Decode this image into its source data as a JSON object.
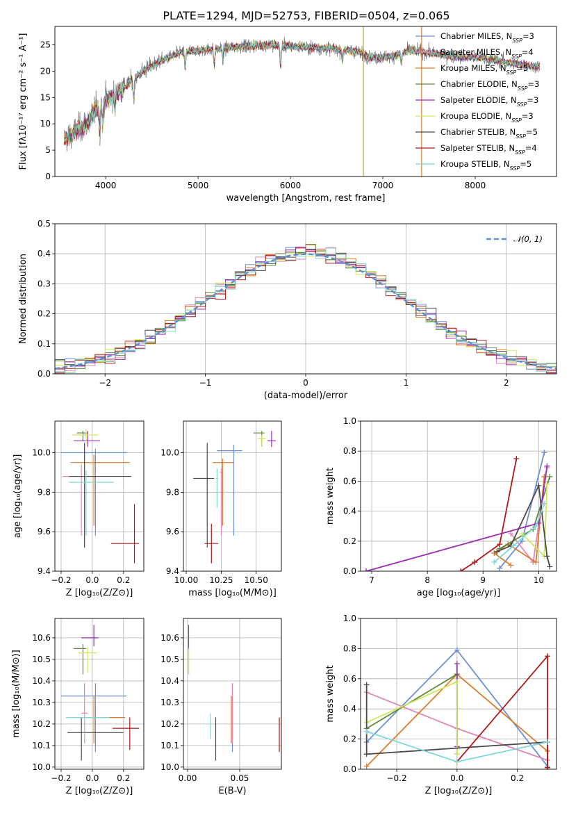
{
  "figure_title": "PLATE=1294, MJD=52753, FIBERID=0504, z=0.065",
  "colors": {
    "grid": "#b0b0b0",
    "normal_curve": "#5f8fd0"
  },
  "models": [
    {
      "label": "Chabrier MILES, N",
      "sub": "SSP",
      "suffix": "=3",
      "color": "#6a8fd8"
    },
    {
      "label": "Salpeter MILES, N",
      "sub": "SSP",
      "suffix": "=4",
      "color": "#e485b7"
    },
    {
      "label": "Kroupa MILES, N",
      "sub": "SSP",
      "suffix": "=5",
      "color": "#e07a2a"
    },
    {
      "label": "Chabrier ELODIE, N",
      "sub": "SSP",
      "suffix": "=3",
      "color": "#5a8a3a"
    },
    {
      "label": "Salpeter ELODIE, N",
      "sub": "SSP",
      "suffix": "=3",
      "color": "#9a2bb8"
    },
    {
      "label": "Kroupa ELODIE, N",
      "sub": "SSP",
      "suffix": "=3",
      "color": "#cde85a"
    },
    {
      "label": "Chabrier STELIB, N",
      "sub": "SSP",
      "suffix": "=5",
      "color": "#4a4a4a"
    },
    {
      "label": "Salpeter STELIB, N",
      "sub": "SSP",
      "suffix": "=4",
      "color": "#b01818"
    },
    {
      "label": "Kroupa STELIB, N",
      "sub": "SSP",
      "suffix": "=5",
      "color": "#7ed8d8"
    }
  ],
  "chart_data": [
    {
      "id": "spectrum",
      "type": "line",
      "title": "PLATE=1294, MJD=52753, FIBERID=0504, z=0.065",
      "xlabel": "wavelength [Angstrom, rest frame]",
      "ylabel": "Flux [fλ10⁻¹⁷ erg cm⁻² s⁻¹ A⁻¹]",
      "xlim": [
        3450,
        8880
      ],
      "ylim": [
        0,
        28.5
      ],
      "xticks": [
        4000,
        5000,
        6000,
        7000,
        8000
      ],
      "yticks": [
        0,
        5,
        10,
        15,
        20,
        25
      ],
      "data_range": [
        3550,
        8700
      ],
      "continuum_knots": [
        [
          3550,
          7
        ],
        [
          3700,
          9
        ],
        [
          3800,
          10
        ],
        [
          3900,
          13
        ],
        [
          4000,
          14.5
        ],
        [
          4200,
          17
        ],
        [
          4400,
          20
        ],
        [
          4600,
          22
        ],
        [
          4800,
          23.5
        ],
        [
          5000,
          24
        ],
        [
          5200,
          24.2
        ],
        [
          5500,
          24.8
        ],
        [
          5800,
          25
        ],
        [
          6100,
          24.6
        ],
        [
          6400,
          24.3
        ],
        [
          6700,
          23.8
        ],
        [
          6900,
          22.5
        ],
        [
          7100,
          22.8
        ],
        [
          7300,
          24
        ],
        [
          7500,
          23.5
        ],
        [
          7800,
          22.8
        ],
        [
          8100,
          22.5
        ],
        [
          8400,
          21.5
        ],
        [
          8700,
          20.8
        ]
      ],
      "vertical_spikes": [
        6790,
        7420
      ],
      "legend": "top-right"
    },
    {
      "id": "residuals",
      "type": "histogram",
      "xlabel": "(data-model)/error",
      "ylabel": "Normed distribution",
      "xlim": [
        -2.5,
        2.5
      ],
      "ylim": [
        0,
        0.5
      ],
      "xticks": [
        -2,
        -1,
        0,
        1,
        2
      ],
      "yticks": [
        0.0,
        0.1,
        0.2,
        0.3,
        0.4,
        0.5
      ],
      "bin_width": 0.1,
      "normal_label": "𝒩(0, 1)",
      "legend": "top-right"
    },
    {
      "id": "age_vs_Z",
      "type": "errorbar",
      "xlabel": "Z [log₁₀(Z/Z⊙)]",
      "ylabel": "age  [log₁₀(age/yr)]",
      "xlim": [
        -0.24,
        0.33
      ],
      "ylim": [
        9.4,
        10.16
      ],
      "xticks": [
        -0.2,
        0.0,
        0.2
      ],
      "yticks": [
        9.4,
        9.6,
        9.8,
        10.0
      ],
      "points": [
        {
          "m": 0,
          "x": 0.02,
          "y": 10.0,
          "xerr": [
            0.22,
            0.2
          ],
          "yerr": [
            0.42,
            0.02
          ]
        },
        {
          "m": 1,
          "x": -0.07,
          "y": 9.88,
          "xerr": [
            0.12,
            0.1
          ],
          "yerr": [
            0.3,
            0.06
          ]
        },
        {
          "m": 2,
          "x": 0.01,
          "y": 9.95,
          "xerr": [
            0.15,
            0.23
          ],
          "yerr": [
            0.32,
            0.04
          ]
        },
        {
          "m": 3,
          "x": -0.06,
          "y": 10.1,
          "xerr": [
            0.04,
            0.03
          ],
          "yerr": [
            0.04,
            0.01
          ]
        },
        {
          "m": 4,
          "x": -0.03,
          "y": 10.06,
          "xerr": [
            0.09,
            0.08
          ],
          "yerr": [
            0.03,
            0.05
          ]
        },
        {
          "m": 5,
          "x": -0.04,
          "y": 10.09,
          "xerr": [
            0.09,
            0.08
          ],
          "yerr": [
            0.04,
            0.03
          ]
        },
        {
          "m": 6,
          "x": -0.05,
          "y": 9.88,
          "xerr": [
            0.1,
            0.3
          ],
          "yerr": [
            0.36,
            0.17
          ]
        },
        {
          "m": 7,
          "x": 0.27,
          "y": 9.54,
          "xerr": [
            0.15,
            0.03
          ],
          "yerr": [
            0.1,
            0.2
          ]
        },
        {
          "m": 8,
          "x": -0.04,
          "y": 9.85,
          "xerr": [
            0.11,
            0.18
          ],
          "yerr": [
            0.27,
            0.06
          ]
        }
      ]
    },
    {
      "id": "age_vs_mass",
      "type": "errorbar",
      "xlabel": "mass [log₁₀(M/M⊙)]",
      "ylabel": "",
      "xlim": [
        9.98,
        10.68
      ],
      "ylim": [
        9.4,
        10.16
      ],
      "xticks": [
        10.0,
        10.25,
        10.5
      ],
      "yticks": [
        9.4,
        9.6,
        9.8,
        10.0
      ],
      "points": [
        {
          "m": 0,
          "x": 10.34,
          "y": 10.01,
          "xerr": [
            0.12,
            0.06
          ],
          "yerr": [
            0.43,
            0.03
          ]
        },
        {
          "m": 1,
          "x": 10.25,
          "y": 9.9,
          "xerr": [
            0.01,
            0.01
          ],
          "yerr": [
            0.32,
            0.02
          ]
        },
        {
          "m": 2,
          "x": 10.26,
          "y": 9.95,
          "xerr": [
            0.07,
            0.08
          ],
          "yerr": [
            0.32,
            0.02
          ]
        },
        {
          "m": 3,
          "x": 10.54,
          "y": 10.1,
          "xerr": [
            0.06,
            0.02
          ],
          "yerr": [
            0.07,
            0.01
          ]
        },
        {
          "m": 4,
          "x": 10.61,
          "y": 10.06,
          "xerr": [
            0.03,
            0.03
          ],
          "yerr": [
            0.03,
            0.05
          ]
        },
        {
          "m": 5,
          "x": 10.54,
          "y": 10.07,
          "xerr": [
            0.03,
            0.03
          ],
          "yerr": [
            0.04,
            0.02
          ]
        },
        {
          "m": 6,
          "x": 10.15,
          "y": 9.87,
          "xerr": [
            0.1,
            0.05
          ],
          "yerr": [
            0.35,
            0.18
          ]
        },
        {
          "m": 7,
          "x": 10.18,
          "y": 9.54,
          "xerr": [
            0.05,
            0.05
          ],
          "yerr": [
            0.1,
            0.1
          ]
        },
        {
          "m": 8,
          "x": 10.22,
          "y": 9.87,
          "xerr": [
            0.01,
            0.01
          ],
          "yerr": [
            0.15,
            0.05
          ]
        }
      ]
    },
    {
      "id": "weight_vs_age",
      "type": "line",
      "xlabel": "age  [log₁₀(age/yr)]",
      "ylabel": "mass weight",
      "xlim": [
        6.8,
        10.32
      ],
      "ylim": [
        0,
        1.0
      ],
      "xticks": [
        7,
        8,
        9,
        10
      ],
      "yticks": [
        0.0,
        0.2,
        0.4,
        0.6,
        0.8,
        1.0
      ],
      "series": [
        {
          "m": 0,
          "x": [
            9.3,
            9.7,
            10.1
          ],
          "y": [
            0.02,
            0.2,
            0.79
          ]
        },
        {
          "m": 1,
          "x": [
            9.5,
            9.9,
            10.15
          ],
          "y": [
            0.25,
            0.06,
            0.69
          ]
        },
        {
          "m": 2,
          "x": [
            9.5,
            9.2,
            9.45,
            9.95,
            10.1
          ],
          "y": [
            0.04,
            0.12,
            0.18,
            0.06,
            0.63
          ]
        },
        {
          "m": 3,
          "x": [
            9.3,
            9.9,
            10.2
          ],
          "y": [
            0.15,
            0.28,
            0.63
          ]
        },
        {
          "m": 4,
          "x": [
            6.9,
            10.0,
            10.15
          ],
          "y": [
            0.0,
            0.32,
            0.7
          ]
        },
        {
          "m": 5,
          "x": [
            9.7,
            10.1,
            10.15
          ],
          "y": [
            0.25,
            0.1,
            0.58
          ]
        },
        {
          "m": 6,
          "x": [
            9.25,
            9.5,
            10.0,
            10.15,
            10.2
          ],
          "y": [
            0.13,
            0.17,
            0.57,
            0.1,
            0.03
          ]
        },
        {
          "m": 7,
          "x": [
            8.6,
            8.85,
            9.3,
            9.6
          ],
          "y": [
            0.0,
            0.06,
            0.18,
            0.75
          ]
        },
        {
          "m": 8,
          "x": [
            9.2,
            9.55,
            9.95,
            10.1
          ],
          "y": [
            0.06,
            0.17,
            0.3,
            0.45
          ]
        }
      ]
    },
    {
      "id": "mass_vs_Z",
      "type": "errorbar",
      "xlabel": "Z [log₁₀(Z/Z⊙)]",
      "ylabel": "mass [log₁₀(M/M⊙)]",
      "xlim": [
        -0.24,
        0.33
      ],
      "ylim": [
        9.99,
        10.69
      ],
      "xticks": [
        -0.2,
        0.0,
        0.2
      ],
      "yticks": [
        10.0,
        10.1,
        10.2,
        10.3,
        10.4,
        10.5,
        10.6
      ],
      "points": [
        {
          "m": 0,
          "x": 0.02,
          "y": 10.33,
          "xerr": [
            0.22,
            0.2
          ],
          "yerr": [
            0.26,
            0.06
          ]
        },
        {
          "m": 1,
          "x": -0.05,
          "y": 10.25,
          "xerr": [
            0.02,
            0.02
          ],
          "yerr": [
            0.14,
            0.14
          ]
        },
        {
          "m": 2,
          "x": 0.01,
          "y": 10.23,
          "xerr": [
            0.11,
            0.2
          ],
          "yerr": [
            0.12,
            0.1
          ]
        },
        {
          "m": 3,
          "x": -0.06,
          "y": 10.55,
          "xerr": [
            0.06,
            0.02
          ],
          "yerr": [
            0.12,
            0.02
          ]
        },
        {
          "m": 4,
          "x": 0.01,
          "y": 10.6,
          "xerr": [
            0.08,
            0.03
          ],
          "yerr": [
            0.04,
            0.06
          ]
        },
        {
          "m": 5,
          "x": -0.03,
          "y": 10.53,
          "xerr": [
            0.06,
            0.06
          ],
          "yerr": [
            0.09,
            0.03
          ]
        },
        {
          "m": 6,
          "x": -0.07,
          "y": 10.16,
          "xerr": [
            0.09,
            0.27
          ],
          "yerr": [
            0.13,
            0.07
          ]
        },
        {
          "m": 7,
          "x": 0.24,
          "y": 10.18,
          "xerr": [
            0.11,
            0.06
          ],
          "yerr": [
            0.1,
            0.05
          ]
        },
        {
          "m": 8,
          "x": -0.05,
          "y": 10.23,
          "xerr": [
            0.12,
            0.16
          ],
          "yerr": [
            0.1,
            0.02
          ]
        }
      ]
    },
    {
      "id": "mass_vs_ebv",
      "type": "errorbar",
      "xlabel": "E(B-V)",
      "ylabel": "",
      "xlim": [
        -0.004,
        0.09
      ],
      "ylim": [
        9.99,
        10.69
      ],
      "xticks": [
        0.0,
        0.05
      ],
      "yticks": [
        10.0,
        10.1,
        10.2,
        10.3,
        10.4,
        10.5,
        10.6
      ],
      "points": [
        {
          "m": 0,
          "x": 0.043,
          "y": 10.33,
          "xerr": [
            0.0,
            0.0
          ],
          "yerr": [
            0.26,
            0.06
          ]
        },
        {
          "m": 1,
          "x": 0.043,
          "y": 10.25,
          "xerr": [
            0.0,
            0.0
          ],
          "yerr": [
            0.14,
            0.14
          ]
        },
        {
          "m": 2,
          "x": 0.042,
          "y": 10.23,
          "xerr": [
            0.0,
            0.0
          ],
          "yerr": [
            0.12,
            0.1
          ]
        },
        {
          "m": 3,
          "x": 0.001,
          "y": 10.55,
          "xerr": [
            0.0,
            0.0
          ],
          "yerr": [
            0.12,
            0.02
          ]
        },
        {
          "m": 4,
          "x": 0.001,
          "y": 10.6,
          "xerr": [
            0.0,
            0.0
          ],
          "yerr": [
            0.04,
            0.06
          ]
        },
        {
          "m": 5,
          "x": 0.001,
          "y": 10.52,
          "xerr": [
            0.0,
            0.0
          ],
          "yerr": [
            0.09,
            0.03
          ]
        },
        {
          "m": 6,
          "x": 0.027,
          "y": 10.16,
          "xerr": [
            0.0,
            0.0
          ],
          "yerr": [
            0.13,
            0.07
          ]
        },
        {
          "m": 7,
          "x": 0.088,
          "y": 10.15,
          "xerr": [
            0.0,
            0.0
          ],
          "yerr": [
            0.08,
            0.08
          ]
        },
        {
          "m": 8,
          "x": 0.022,
          "y": 10.2,
          "xerr": [
            0.0,
            0.0
          ],
          "yerr": [
            0.07,
            0.05
          ]
        }
      ]
    },
    {
      "id": "weight_vs_Z",
      "type": "line",
      "xlabel": "Z [log₁₀(Z/Z⊙)]",
      "ylabel": "mass weight",
      "xlim": [
        -0.32,
        0.33
      ],
      "ylim": [
        0,
        1.0
      ],
      "xticks": [
        -0.2,
        0.0,
        0.2
      ],
      "yticks": [
        0.0,
        0.2,
        0.4,
        0.6,
        0.8,
        1.0
      ],
      "series": [
        {
          "m": 0,
          "x": [
            -0.3,
            0.0,
            0.3
          ],
          "y": [
            0.18,
            0.79,
            0.02
          ]
        },
        {
          "m": 1,
          "x": [
            -0.3,
            0.0,
            0.3
          ],
          "y": [
            0.51,
            0.27,
            0.06
          ]
        },
        {
          "m": 2,
          "x": [
            -0.3,
            0.0,
            0.3
          ],
          "y": [
            0.02,
            0.63,
            0.12
          ]
        },
        {
          "m": 3,
          "x": [
            -0.3,
            0.0,
            0.0
          ],
          "y": [
            0.27,
            0.63,
            0.1
          ]
        },
        {
          "m": 4,
          "x": [
            0.0,
            0.0
          ],
          "y": [
            0.7,
            0.15
          ]
        },
        {
          "m": 5,
          "x": [
            -0.3,
            0.0,
            0.0
          ],
          "y": [
            0.31,
            0.58,
            0.1
          ]
        },
        {
          "m": 6,
          "x": [
            -0.3,
            -0.3,
            0.3,
            0.3
          ],
          "y": [
            0.56,
            0.1,
            0.18,
            0.01
          ]
        },
        {
          "m": 7,
          "x": [
            0.0,
            0.3,
            0.3
          ],
          "y": [
            0.05,
            0.75,
            0.01
          ]
        },
        {
          "m": 8,
          "x": [
            -0.3,
            0.0,
            0.3
          ],
          "y": [
            0.25,
            0.05,
            0.18
          ]
        }
      ]
    }
  ]
}
